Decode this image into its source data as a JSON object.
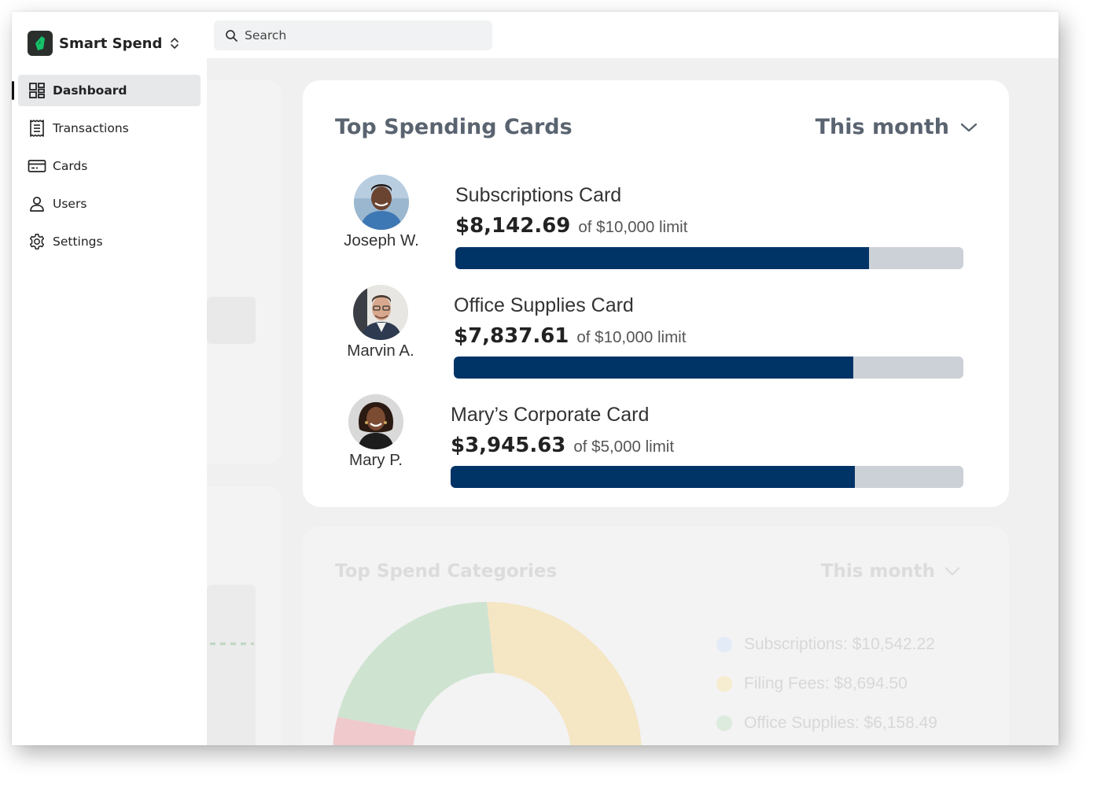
{
  "app": {
    "name": "Smart Spend",
    "brand_color": "#16c26a"
  },
  "search": {
    "placeholder": "Search"
  },
  "sidebar": {
    "items": [
      {
        "label": "Dashboard",
        "icon": "dashboard-icon",
        "active": true
      },
      {
        "label": "Transactions",
        "icon": "receipt-icon",
        "active": false
      },
      {
        "label": "Cards",
        "icon": "credit-card-icon",
        "active": false
      },
      {
        "label": "Users",
        "icon": "user-icon",
        "active": false
      },
      {
        "label": "Settings",
        "icon": "gear-icon",
        "active": false
      }
    ]
  },
  "top_cards": {
    "title": "Top Spending Cards",
    "period": "This month",
    "bar_colors": {
      "fill": "#003366",
      "track": "#ccd1d7"
    },
    "rows": [
      {
        "holder": "Joseph W.",
        "card_name": "Subscriptions Card",
        "amount": "$8,142.69",
        "limit_text": "of $10,000 limit",
        "progress": 0.8143
      },
      {
        "holder": "Marvin A.",
        "card_name": "Office Supplies Card",
        "amount": "$7,837.61",
        "limit_text": "of $10,000 limit",
        "progress": 0.7838
      },
      {
        "holder": "Mary P.",
        "card_name": "Mary’s Corporate Card",
        "amount": "$3,945.63",
        "limit_text": "of $5,000 limit",
        "progress": 0.7891
      }
    ]
  },
  "categories": {
    "title": "Top Spend  Categories",
    "period": "This month",
    "legend": [
      {
        "label": "Subscriptions:",
        "value": "$10,542.22",
        "color": "#e3ecf6"
      },
      {
        "label": "Filing Fees:",
        "value": "$8,694.50",
        "color": "#f6ecd0"
      },
      {
        "label": "Office Supplies:",
        "value": "$6,158.49",
        "color": "#dcebde"
      }
    ]
  }
}
